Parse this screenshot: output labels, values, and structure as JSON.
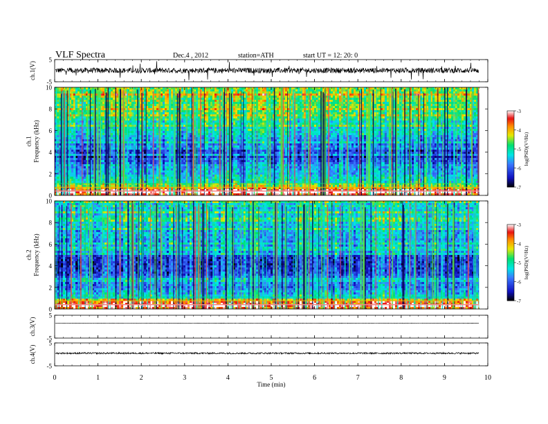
{
  "header": {
    "title": "VLF  Spectra",
    "date": "Dec.4  , 2012",
    "station": "station=ATH",
    "start": "start  UT  =   12: 20: 0"
  },
  "chart_data": [
    {
      "type": "line",
      "panel": "ch1-waveform",
      "ylabel": "ch.1(V)",
      "ylim": [
        -5,
        5
      ],
      "yticks": [
        "5",
        "-5"
      ],
      "xlim": [
        0,
        10
      ],
      "data_end_min": 9.8,
      "baseline_v": 0.1,
      "noise_amplitude_v": 1.2,
      "spike_amplitude_v": 4.5,
      "color": "#000000"
    },
    {
      "type": "heatmap",
      "panel": "ch1-spectrogram",
      "ylabel": "ch.1\nFrequency  (kHz)",
      "ylim": [
        0,
        10
      ],
      "yticks": [
        "0",
        "2",
        "4",
        "6",
        "8",
        "10"
      ],
      "xlim": [
        0,
        10
      ],
      "data_end_min": 9.8,
      "colorbar": {
        "label": "log(PSD)(V²/Hz)",
        "range": [
          -7,
          -3
        ],
        "ticks": [
          "-3",
          "-4",
          "-5",
          "-6",
          "-7"
        ]
      },
      "profile_freq_khz": [
        0,
        0.4,
        0.8,
        1,
        2,
        3,
        3.5,
        4.5,
        5,
        6,
        7,
        8,
        9,
        10
      ],
      "profile_log_psd": [
        -3.6,
        -3.3,
        -4.2,
        -5.0,
        -5.6,
        -5.8,
        -6.2,
        -6.3,
        -5.7,
        -5.3,
        -5.0,
        -4.8,
        -4.5,
        -4.4
      ]
    },
    {
      "type": "heatmap",
      "panel": "ch2-spectrogram",
      "ylabel": "ch.2\nFrequency  (kHz)",
      "ylim": [
        0,
        10
      ],
      "yticks": [
        "0",
        "2",
        "4",
        "6",
        "8",
        "10"
      ],
      "xlim": [
        0,
        10
      ],
      "data_end_min": 9.8,
      "colorbar": {
        "label": "log(PSD)(V²/Hz)",
        "range": [
          -7,
          -3
        ],
        "ticks": [
          "-3",
          "-4",
          "-5",
          "-6",
          "-7"
        ]
      },
      "profile_freq_khz": [
        0,
        0.4,
        0.8,
        1,
        2,
        3,
        3.5,
        4.5,
        5,
        6,
        7,
        8,
        9,
        10
      ],
      "profile_log_psd": [
        -3.6,
        -3.4,
        -4.3,
        -5.2,
        -5.7,
        -5.9,
        -6.2,
        -6.3,
        -5.8,
        -5.6,
        -5.4,
        -5.3,
        -5.2,
        -5.2
      ]
    },
    {
      "type": "line",
      "panel": "ch3-waveform",
      "ylabel": "ch.3(V)",
      "ylim": [
        -5,
        5
      ],
      "yticks": [
        "5",
        "-5"
      ],
      "xlim": [
        0,
        10
      ],
      "data_end_min": 9.8,
      "baseline_v": 1.5,
      "noise_amplitude_v": 0.08,
      "color": "#000000"
    },
    {
      "type": "line",
      "panel": "ch4-waveform",
      "ylabel": "ch.4(V)",
      "ylim": [
        -5,
        5
      ],
      "yticks": [
        "5",
        "-5"
      ],
      "xlim": [
        0,
        10
      ],
      "data_end_min": 9.8,
      "baseline_v": 0.5,
      "noise_amplitude_v": 0.35,
      "color": "#000000"
    }
  ],
  "xaxis": {
    "label": "Time  (min)",
    "ticks": [
      "0",
      "1",
      "2",
      "3",
      "4",
      "5",
      "6",
      "7",
      "8",
      "9",
      "10"
    ]
  },
  "colormap": [
    "#000000",
    "#1010c0",
    "#3a78ff",
    "#00e6e6",
    "#00e070",
    "#e8e800",
    "#ff8a00",
    "#e81010",
    "#ffffff"
  ]
}
